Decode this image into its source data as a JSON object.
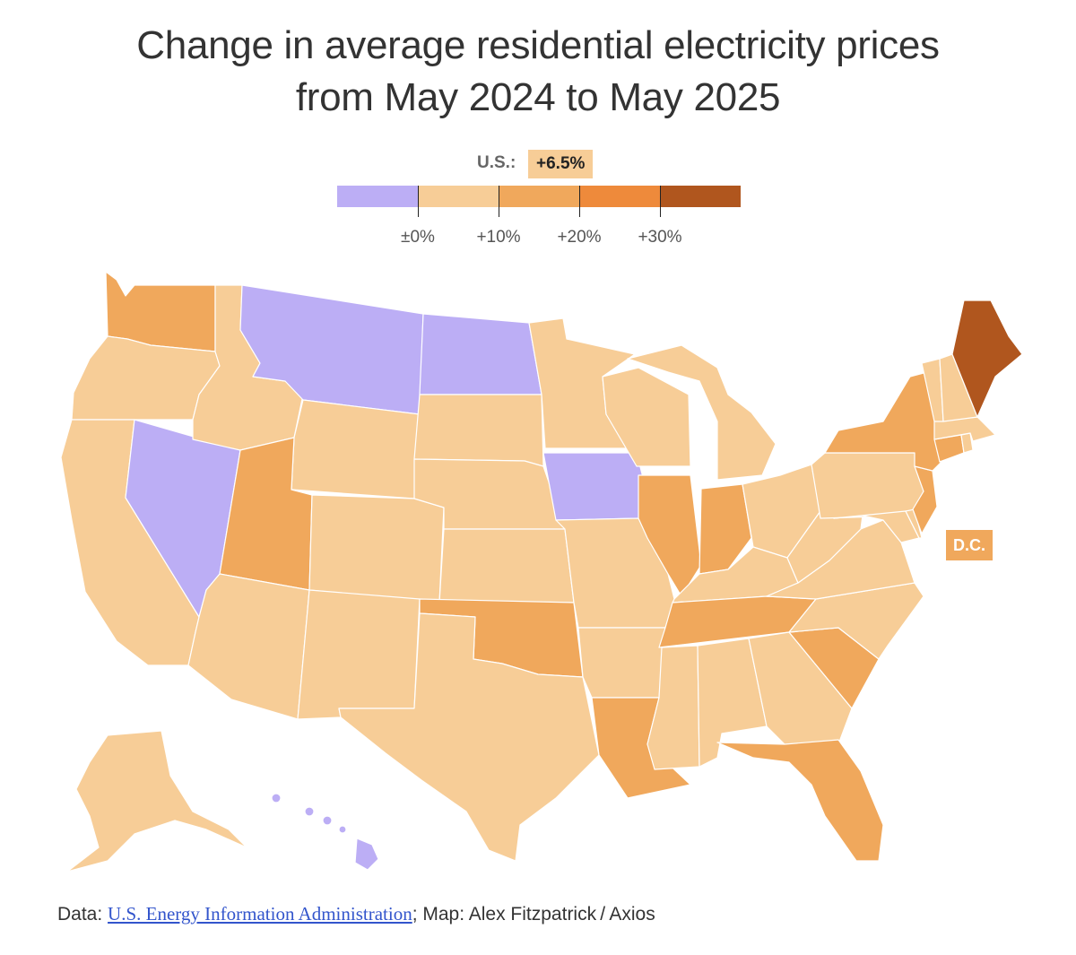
{
  "title_line1": "Change in average residential electricity prices",
  "title_line2": "from May 2024 to May 2025",
  "us_label": "U.S.:",
  "us_value": "+6.5%",
  "legend": {
    "bins": [
      {
        "label": "below 0%",
        "color": "#bcaef5"
      },
      {
        "label": "0% to +10%",
        "color": "#f7cd97"
      },
      {
        "label": "+10% to +20%",
        "color": "#f0a85c"
      },
      {
        "label": "+20% to +30%",
        "color": "#ee8a3b"
      },
      {
        "label": "+30% and above",
        "color": "#b0561e"
      }
    ],
    "tick_labels": [
      "±0%",
      "+10%",
      "+20%",
      "+30%"
    ]
  },
  "dc_label": "D.C.",
  "footer": {
    "prefix": "Data: ",
    "source_link": "U.S. Energy Information Administration",
    "suffix": "; Map: Alex Fitzpatrick / Axios"
  },
  "state_bins": {
    "WA": "+10% to +20%",
    "OR": "0% to +10%",
    "CA": "0% to +10%",
    "NV": "below 0%",
    "ID": "0% to +10%",
    "MT": "below 0%",
    "WY": "0% to +10%",
    "UT": "+10% to +20%",
    "AZ": "0% to +10%",
    "CO": "0% to +10%",
    "NM": "0% to +10%",
    "ND": "below 0%",
    "SD": "0% to +10%",
    "NE": "0% to +10%",
    "KS": "0% to +10%",
    "OK": "+10% to +20%",
    "TX": "0% to +10%",
    "MN": "0% to +10%",
    "IA": "below 0%",
    "MO": "0% to +10%",
    "AR": "0% to +10%",
    "LA": "+10% to +20%",
    "WI": "0% to +10%",
    "IL": "+10% to +20%",
    "MI": "0% to +10%",
    "IN": "+10% to +20%",
    "OH": "0% to +10%",
    "KY": "0% to +10%",
    "TN": "+10% to +20%",
    "MS": "0% to +10%",
    "AL": "0% to +10%",
    "GA": "0% to +10%",
    "FL": "+10% to +20%",
    "SC": "+10% to +20%",
    "NC": "0% to +10%",
    "VA": "0% to +10%",
    "WV": "0% to +10%",
    "PA": "0% to +10%",
    "NY": "+10% to +20%",
    "NJ": "+10% to +20%",
    "DE": "0% to +10%",
    "MD": "0% to +10%",
    "CT": "+10% to +20%",
    "RI": "0% to +10%",
    "MA": "0% to +10%",
    "VT": "0% to +10%",
    "NH": "0% to +10%",
    "ME": "+30% and above",
    "AK": "0% to +10%",
    "HI": "below 0%",
    "DC": "+10% to +20%"
  }
}
